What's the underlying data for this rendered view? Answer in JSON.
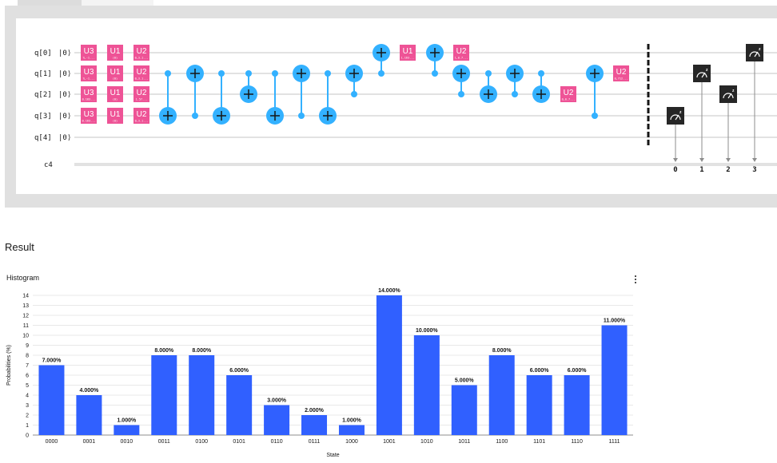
{
  "circuit": {
    "qubits": [
      "q[0]",
      "q[1]",
      "q[2]",
      "q[3]",
      "q[4]"
    ],
    "ket": "|0⟩",
    "classical_register": "c4",
    "gate_color": "#ee5396",
    "cnot_color": "#33b1ff",
    "measure_color": "#262626",
    "gates": [
      {
        "name": "U3",
        "param": "π,-1...",
        "q": 0,
        "col": 0
      },
      {
        "name": "U3",
        "param": "π,-1...",
        "q": 1,
        "col": 0
      },
      {
        "name": "U3",
        "param": "0.183...",
        "q": 2,
        "col": 0
      },
      {
        "name": "U3",
        "param": "0.163...",
        "q": 3,
        "col": 0
      },
      {
        "name": "U1",
        "param": "(0)",
        "q": 0,
        "col": 1
      },
      {
        "name": "U1",
        "param": "(0)",
        "q": 1,
        "col": 1
      },
      {
        "name": "U1",
        "param": "(0)",
        "q": 2,
        "col": 1
      },
      {
        "name": "U1",
        "param": "(0)",
        "q": 3,
        "col": 1
      },
      {
        "name": "U2",
        "param": "0,3.1...",
        "q": 0,
        "col": 2
      },
      {
        "name": "U2",
        "param": "0,3.1...",
        "q": 1,
        "col": 2
      },
      {
        "name": "U2",
        "param": "1.57...",
        "q": 2,
        "col": 2
      },
      {
        "name": "U2",
        "param": "0,3.1...",
        "q": 3,
        "col": 2
      },
      {
        "name": "U1",
        "param": "1.163...",
        "q": 0,
        "col": 3
      },
      {
        "name": "U2",
        "param": "1,0.7...",
        "q": 0,
        "col": 4
      },
      {
        "name": "U2",
        "param": "0,0.7...",
        "q": 2,
        "col": 5
      },
      {
        "name": "U2",
        "param": "0,712...",
        "q": 1,
        "col": 6
      }
    ],
    "measurements": [
      {
        "q": 3,
        "bit": "0"
      },
      {
        "q": 1,
        "bit": "1"
      },
      {
        "q": 2,
        "bit": "2"
      },
      {
        "q": 0,
        "bit": "3"
      }
    ]
  },
  "result": {
    "title": "Result",
    "histogram_title": "Histogram",
    "menu_icon": "overflow-menu-vertical-icon"
  },
  "chart_data": {
    "type": "bar",
    "xlabel": "State",
    "ylabel": "Probabilities (%)",
    "ylim": [
      0,
      14
    ],
    "yticks": [
      0,
      1,
      2,
      3,
      4,
      5,
      6,
      7,
      8,
      9,
      10,
      11,
      12,
      13,
      14
    ],
    "grid": true,
    "bar_color": "#3060ff",
    "categories": [
      "0000",
      "0001",
      "0010",
      "0011",
      "0100",
      "0101",
      "0110",
      "0111",
      "1000",
      "1001",
      "1010",
      "1011",
      "1100",
      "1101",
      "1110",
      "1111"
    ],
    "values": [
      7,
      4,
      1,
      8,
      8,
      6,
      3,
      2,
      1,
      14,
      10,
      5,
      8,
      6,
      6,
      11
    ],
    "data_labels": [
      "7.000%",
      "4.000%",
      "1.000%",
      "8.000%",
      "8.000%",
      "6.000%",
      "3.000%",
      "2.000%",
      "1.000%",
      "14.000%",
      "10.000%",
      "5.000%",
      "8.000%",
      "6.000%",
      "6.000%",
      "11.000%"
    ]
  }
}
